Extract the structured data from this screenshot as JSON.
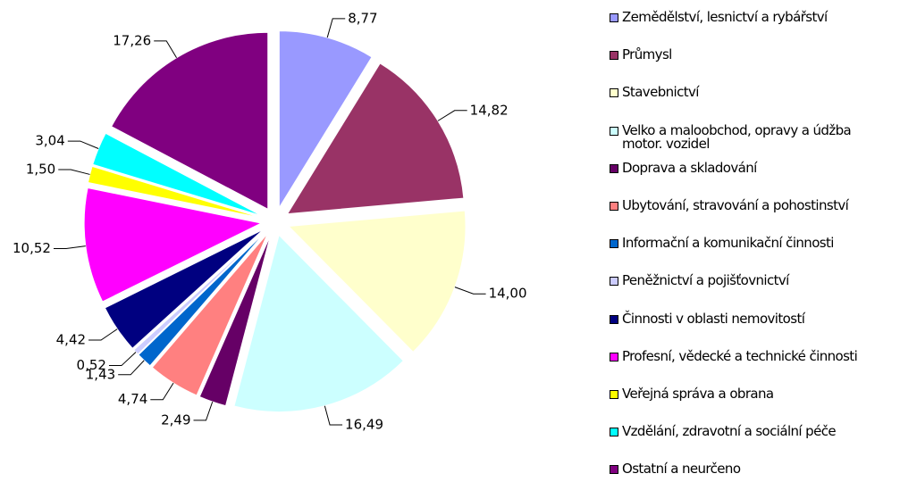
{
  "chart_data": {
    "type": "pie",
    "categories": [
      "Zemědělství, lesnictví a rybářství",
      "Průmysl",
      "Stavebnictví",
      "Velko a maloobchod, opravy a údžba motor. vozidel",
      "Doprava a skladování",
      "Ubytování, stravování a pohostinství",
      "Informační a komunikační činnosti",
      "Peněžnictví a pojišťovnictví",
      "Činnosti v oblasti nemovitostí",
      "Profesní, vědecké a technické činnosti",
      "Veřejná správa a obrana",
      "Vzdělání, zdravotní a sociální péče",
      "Ostatní a neurčeno"
    ],
    "values": [
      8.77,
      14.82,
      14.0,
      16.49,
      2.49,
      4.74,
      1.43,
      0.52,
      4.42,
      10.52,
      1.5,
      3.04,
      17.26
    ],
    "value_labels": [
      "8,77",
      "14,82",
      "14,00",
      "16,49",
      "2,49",
      "4,74",
      "1,43",
      "0,52",
      "4,42",
      "10,52",
      "1,50",
      "3,04",
      "17,26"
    ],
    "colors": [
      "#9999ff",
      "#993366",
      "#ffffcc",
      "#ccffff",
      "#660066",
      "#ff8080",
      "#0066cc",
      "#ccccff",
      "#000080",
      "#ff00ff",
      "#ffff00",
      "#00ffff",
      "#800080"
    ],
    "legend": "right"
  }
}
